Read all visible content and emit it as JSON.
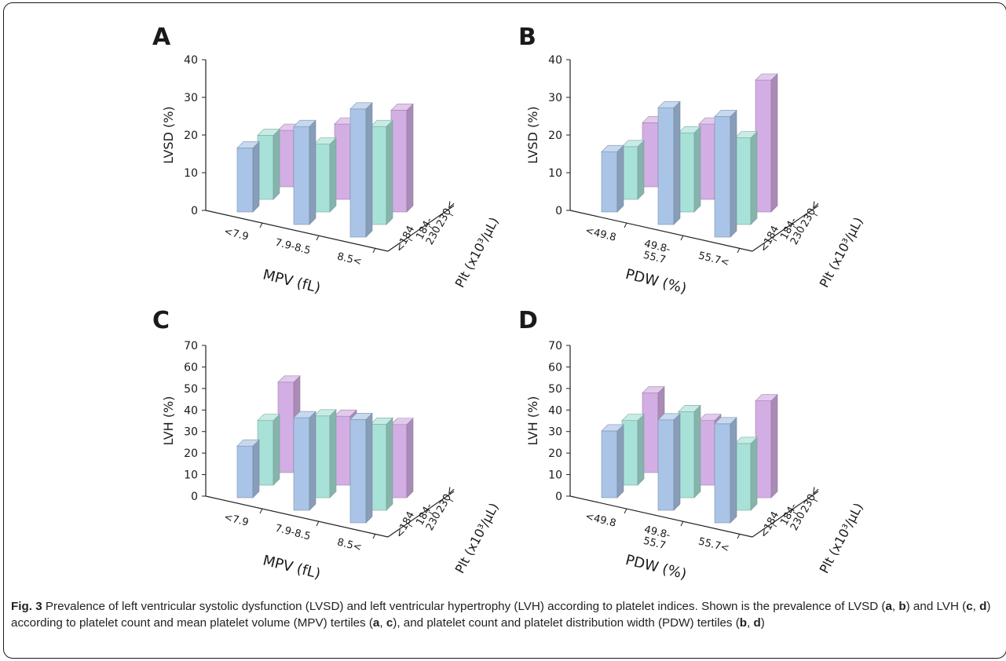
{
  "chart_data": [
    {
      "panel": "A",
      "type": "bar3d",
      "ylabel": "LVSD (%)",
      "xlabel": "MPV (fL)",
      "zlabel": "Plt (x10³/μL)",
      "x_categories": [
        "<7.9",
        "7.9-8.5",
        "8.5<"
      ],
      "z_categories": [
        "<184",
        "184- 230",
        "230<"
      ],
      "ylim": [
        0,
        40
      ],
      "yticks": [
        0,
        10,
        20,
        30,
        40
      ],
      "series": [
        {
          "name": "<184",
          "color": "#a9c4e6",
          "values": [
            17,
            26,
            34
          ]
        },
        {
          "name": "184- 230",
          "color": "#a8e1d7",
          "values": [
            17,
            18,
            26
          ]
        },
        {
          "name": "230<",
          "color": "#d3aee4",
          "values": [
            15,
            20,
            27
          ]
        }
      ]
    },
    {
      "panel": "B",
      "type": "bar3d",
      "ylabel": "LVSD (%)",
      "xlabel": "PDW (%)",
      "zlabel": "Plt (x10³/μL)",
      "x_categories": [
        "<49.8",
        "49.8-\n55.7",
        "55.7<"
      ],
      "z_categories": [
        "<184",
        "184- 230",
        "230<"
      ],
      "ylim": [
        0,
        40
      ],
      "yticks": [
        0,
        10,
        20,
        30,
        40
      ],
      "series": [
        {
          "name": "<184",
          "color": "#a9c4e6",
          "values": [
            16,
            31,
            32
          ]
        },
        {
          "name": "184- 230",
          "color": "#a8e1d7",
          "values": [
            14,
            21,
            23
          ]
        },
        {
          "name": "230<",
          "color": "#d3aee4",
          "values": [
            17,
            20,
            35
          ]
        }
      ]
    },
    {
      "panel": "C",
      "type": "bar3d",
      "ylabel": "LVH (%)",
      "xlabel": "MPV (fL)",
      "zlabel": "Plt (x10³/μL)",
      "x_categories": [
        "<7.9",
        "7.9-8.5",
        "8.5<"
      ],
      "z_categories": [
        "<184",
        "184- 230",
        "230<"
      ],
      "ylim": [
        0,
        70
      ],
      "yticks": [
        0,
        10,
        20,
        30,
        40,
        50,
        60,
        70
      ],
      "series": [
        {
          "name": "<184",
          "color": "#a9c4e6",
          "values": [
            24,
            43,
            48
          ]
        },
        {
          "name": "184- 230",
          "color": "#a8e1d7",
          "values": [
            30,
            38,
            40
          ]
        },
        {
          "name": "230<",
          "color": "#d3aee4",
          "values": [
            42,
            32,
            34
          ]
        }
      ]
    },
    {
      "panel": "D",
      "type": "bar3d",
      "ylabel": "LVH (%)",
      "xlabel": "PDW (%)",
      "zlabel": "Plt (x10³/μL)",
      "x_categories": [
        "<49.8",
        "49.8-\n55.7",
        "55.7<"
      ],
      "z_categories": [
        "<184",
        "184- 230",
        "230<"
      ],
      "ylim": [
        0,
        70
      ],
      "yticks": [
        0,
        10,
        20,
        30,
        40,
        50,
        60,
        70
      ],
      "series": [
        {
          "name": "<184",
          "color": "#a9c4e6",
          "values": [
            31,
            42,
            46
          ]
        },
        {
          "name": "184- 230",
          "color": "#a8e1d7",
          "values": [
            30,
            40,
            31
          ]
        },
        {
          "name": "230<",
          "color": "#d3aee4",
          "values": [
            37,
            30,
            45
          ]
        }
      ]
    }
  ],
  "caption": {
    "fig_label": "Fig. 3",
    "title": "Prevalence of left ventricular systolic dysfunction (LVSD) and left ventricular hypertrophy (LVH) according to platelet indices.",
    "body_1": "Shown is the prevalence of LVSD (",
    "a1": "a",
    "sep1": ", ",
    "b1": "b",
    "body_2": ") and LVH (",
    "c1": "c",
    "sep2": ", ",
    "d1": "d",
    "body_3": ") according to platelet count and mean platelet volume (MPV) tertiles (",
    "a2": "a",
    "sep3": ", ",
    "c2": "c",
    "body_4": "), and platelet count and platelet distribution width (PDW) tertiles (",
    "b2": "b",
    "sep4": ", ",
    "d2": "d",
    "body_5": ")"
  }
}
